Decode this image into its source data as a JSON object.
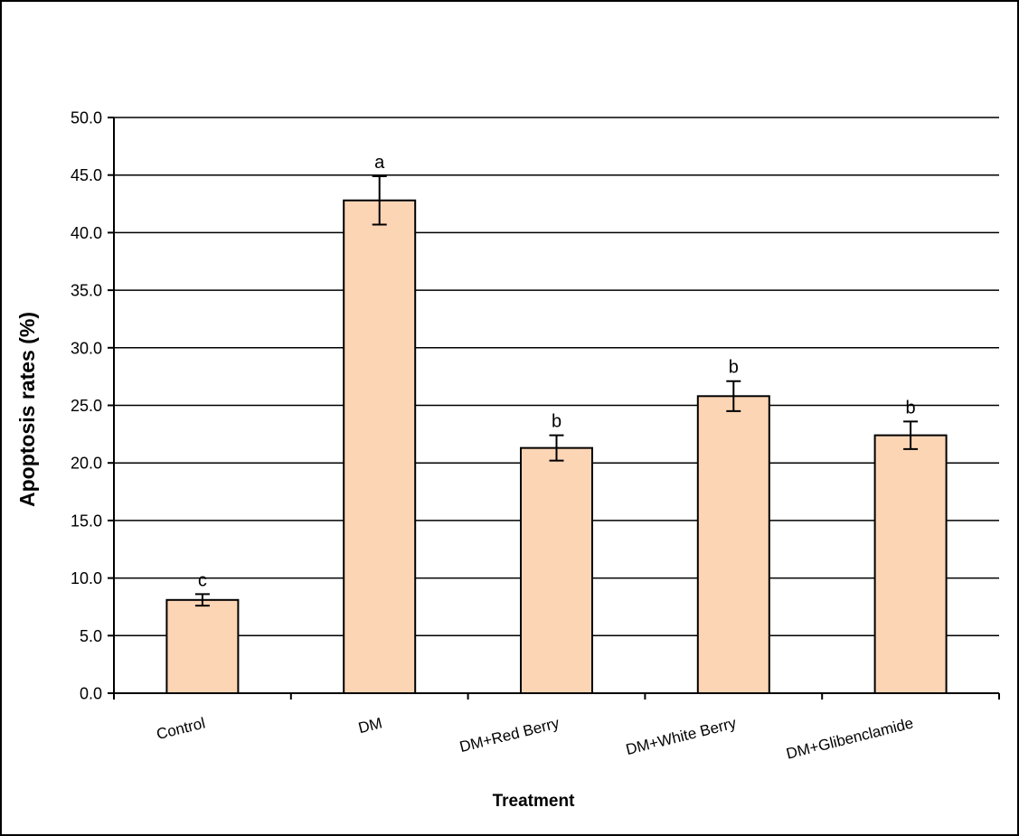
{
  "figure": {
    "background": "#FFFFFF",
    "frame_color": "#000000"
  },
  "chart_data": {
    "type": "bar",
    "title": "",
    "xlabel": "Treatment",
    "ylabel": "Apoptosis rates (%)",
    "categories": [
      "Control",
      "DM",
      "DM+Red Berry",
      "DM+White Berry",
      "DM+Glibenclamide"
    ],
    "values": [
      8.1,
      42.8,
      21.3,
      25.8,
      22.4
    ],
    "errors": [
      0.5,
      2.1,
      1.1,
      1.3,
      1.2
    ],
    "sig_letters": [
      "c",
      "a",
      "b",
      "b",
      "b"
    ],
    "ylim": [
      0,
      50
    ],
    "ytick_step": 5,
    "ytick_labels": [
      "0.0",
      "5.0",
      "10.0",
      "15.0",
      "20.0",
      "25.0",
      "30.0",
      "35.0",
      "40.0",
      "45.0",
      "50.0"
    ],
    "grid": true,
    "legend": "none",
    "bar_fill": "#FCD5B5",
    "bar_stroke": "#000000",
    "grid_color": "#000000",
    "axis_color": "#000000",
    "error_bar_color": "#000000",
    "category_label_rotation_deg": -14
  }
}
